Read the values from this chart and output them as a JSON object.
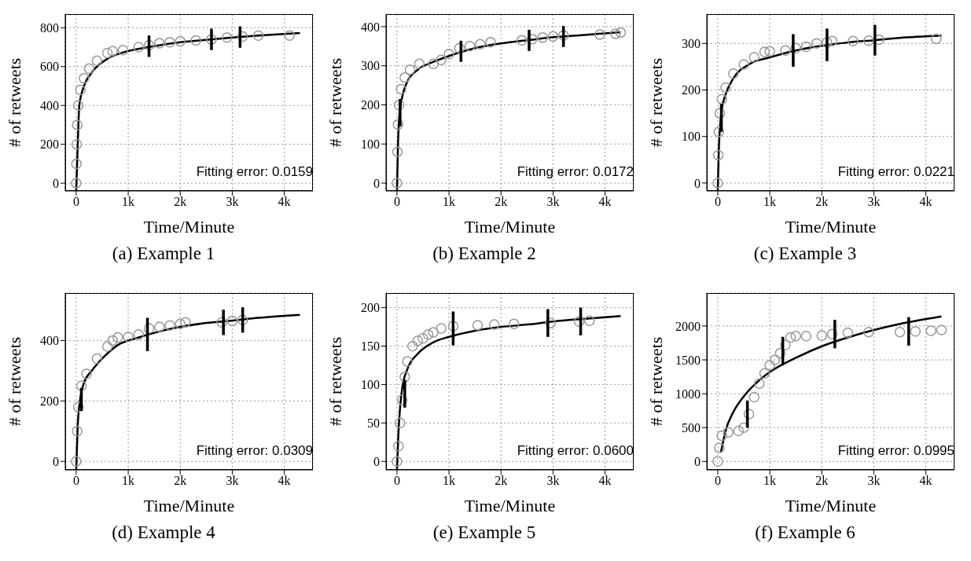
{
  "chart_data": [
    {
      "type": "scatter",
      "title": "(a) Example 1",
      "xlabel": "Time/Minute",
      "ylabel": "# of retweets",
      "annotations": [
        "Fitting error: 0.0159"
      ],
      "xlim": [
        -210,
        4550
      ],
      "ylim": [
        -40,
        870
      ],
      "xticks": [
        {
          "value": 0,
          "label": "0"
        },
        {
          "value": 1000,
          "label": "1k"
        },
        {
          "value": 2000,
          "label": "2k"
        },
        {
          "value": 3000,
          "label": "3k"
        },
        {
          "value": 4000,
          "label": "4k"
        }
      ],
      "yticks": [
        0,
        200,
        400,
        600,
        800
      ],
      "grid": true,
      "series": [
        {
          "type": "scatter",
          "marker": "circle",
          "color": "#999999",
          "x": [
            0,
            5,
            10,
            20,
            40,
            80,
            150,
            250,
            400,
            600,
            700,
            900,
            1200,
            1400,
            1600,
            1800,
            2000,
            2300,
            2600,
            2900,
            3200,
            3500,
            4100
          ],
          "values": [
            0,
            100,
            200,
            300,
            400,
            480,
            540,
            590,
            630,
            670,
            680,
            685,
            700,
            710,
            720,
            725,
            730,
            735,
            740,
            750,
            755,
            760,
            760
          ]
        },
        {
          "type": "line",
          "color": "#000000",
          "x": [
            0,
            30,
            60,
            150,
            300,
            600,
            1000,
            1500,
            2000,
            2500,
            3000,
            3500,
            4300
          ],
          "values": [
            -40,
            200,
            400,
            500,
            570,
            640,
            680,
            705,
            725,
            738,
            750,
            760,
            773
          ]
        },
        {
          "type": "bar",
          "color": "#000000",
          "x": [
            1400,
            2600,
            3150
          ],
          "base": [
            650,
            685,
            697
          ],
          "values": [
            110,
            110,
            110
          ]
        }
      ]
    },
    {
      "type": "scatter",
      "title": "(b) Example 2",
      "xlabel": "Time/Minute",
      "ylabel": "# of retweets",
      "annotations": [
        "Fitting error: 0.0172"
      ],
      "xlim": [
        -210,
        4550
      ],
      "ylim": [
        -20,
        432
      ],
      "xticks": [
        {
          "value": 0,
          "label": "0"
        },
        {
          "value": 1000,
          "label": "1k"
        },
        {
          "value": 2000,
          "label": "2k"
        },
        {
          "value": 3000,
          "label": "3k"
        },
        {
          "value": 4000,
          "label": "4k"
        }
      ],
      "yticks": [
        0,
        100,
        200,
        300,
        400
      ],
      "grid": true,
      "series": [
        {
          "type": "scatter",
          "marker": "circle",
          "color": "#999999",
          "x": [
            0,
            10,
            20,
            40,
            80,
            150,
            250,
            430,
            700,
            850,
            1000,
            1200,
            1400,
            1600,
            1800,
            2400,
            2600,
            2800,
            3000,
            3200,
            3900,
            4200,
            4300
          ],
          "values": [
            0,
            80,
            150,
            200,
            240,
            270,
            290,
            305,
            305,
            315,
            330,
            345,
            350,
            355,
            360,
            365,
            368,
            372,
            375,
            378,
            380,
            382,
            385
          ]
        },
        {
          "type": "line",
          "color": "#000000",
          "x": [
            0,
            20,
            50,
            100,
            200,
            400,
            700,
            1000,
            1500,
            2000,
            2500,
            3000,
            3500,
            4300
          ],
          "values": [
            -20,
            100,
            180,
            220,
            260,
            290,
            310,
            325,
            345,
            357,
            365,
            373,
            378,
            386
          ]
        },
        {
          "type": "bar",
          "color": "#000000",
          "x": [
            60,
            1230,
            2540,
            3200
          ],
          "base": [
            145,
            310,
            338,
            348
          ],
          "values": [
            70,
            54,
            54,
            54
          ]
        }
      ]
    },
    {
      "type": "scatter",
      "title": "(c) Example 3",
      "xlabel": "Time/Minute",
      "ylabel": "# of retweets",
      "annotations": [
        "Fitting error: 0.0221"
      ],
      "xlim": [
        -210,
        4550
      ],
      "ylim": [
        -17,
        363
      ],
      "xticks": [
        {
          "value": 0,
          "label": "0"
        },
        {
          "value": 1000,
          "label": "1k"
        },
        {
          "value": 2000,
          "label": "2k"
        },
        {
          "value": 3000,
          "label": "3k"
        },
        {
          "value": 4000,
          "label": "4k"
        }
      ],
      "yticks": [
        0,
        100,
        200,
        300
      ],
      "grid": true,
      "series": [
        {
          "type": "scatter",
          "marker": "circle",
          "color": "#999999",
          "x": [
            0,
            10,
            20,
            40,
            80,
            150,
            300,
            500,
            700,
            900,
            1000,
            1300,
            1500,
            1700,
            1900,
            2100,
            2200,
            2600,
            2900,
            3100,
            4200
          ],
          "values": [
            0,
            60,
            110,
            150,
            180,
            205,
            235,
            255,
            270,
            282,
            283,
            285,
            290,
            293,
            300,
            302,
            305,
            305,
            306,
            308,
            310
          ]
        },
        {
          "type": "line",
          "color": "#000000",
          "x": [
            0,
            20,
            50,
            80,
            150,
            300,
            600,
            1000,
            1500,
            2000,
            2500,
            3000,
            3500,
            4300
          ],
          "values": [
            -17,
            70,
            130,
            160,
            190,
            225,
            255,
            270,
            285,
            295,
            302,
            307,
            312,
            317
          ]
        },
        {
          "type": "bar",
          "color": "#000000",
          "x": [
            70,
            1450,
            2100,
            3020
          ],
          "base": [
            110,
            250,
            262,
            274
          ],
          "values": [
            60,
            70,
            70,
            66
          ]
        }
      ]
    },
    {
      "type": "scatter",
      "title": "(d) Example 4",
      "xlabel": "Time/Minute",
      "ylabel": "# of retweets",
      "annotations": [
        "Fitting error: 0.0309"
      ],
      "xlim": [
        -210,
        4550
      ],
      "ylim": [
        -28,
        557
      ],
      "xticks": [
        {
          "value": 0,
          "label": "0"
        },
        {
          "value": 1000,
          "label": "1k"
        },
        {
          "value": 2000,
          "label": "2k"
        },
        {
          "value": 3000,
          "label": "3k"
        },
        {
          "value": 4000,
          "label": "4k"
        }
      ],
      "yticks": [
        0,
        200,
        400
      ],
      "grid": true,
      "series": [
        {
          "type": "scatter",
          "marker": "circle",
          "color": "#999999",
          "x": [
            0,
            20,
            40,
            100,
            200,
            400,
            600,
            700,
            800,
            1000,
            1200,
            1400,
            1600,
            1800,
            2000,
            2100,
            2800,
            3000,
            3200
          ],
          "values": [
            0,
            100,
            180,
            250,
            290,
            340,
            380,
            400,
            410,
            412,
            420,
            440,
            445,
            450,
            455,
            460,
            460,
            465,
            468
          ]
        },
        {
          "type": "line",
          "color": "#000000",
          "x": [
            0,
            30,
            80,
            150,
            300,
            500,
            800,
            1200,
            1600,
            2000,
            2500,
            3000,
            3500,
            4300
          ],
          "values": [
            -28,
            120,
            210,
            260,
            300,
            340,
            385,
            410,
            430,
            445,
            458,
            466,
            475,
            485
          ]
        },
        {
          "type": "bar",
          "color": "#000000",
          "x": [
            100,
            1370,
            2830,
            3200
          ],
          "base": [
            167,
            365,
            418,
            426
          ],
          "values": [
            76,
            110,
            84,
            84
          ]
        }
      ]
    },
    {
      "type": "scatter",
      "title": "(e) Example 5",
      "xlabel": "Time/Minute",
      "ylabel": "# of retweets",
      "annotations": [
        "Fitting error: 0.0600"
      ],
      "xlim": [
        -210,
        4550
      ],
      "ylim": [
        -11,
        219
      ],
      "xticks": [
        {
          "value": 0,
          "label": "0"
        },
        {
          "value": 1000,
          "label": "1k"
        },
        {
          "value": 2000,
          "label": "2k"
        },
        {
          "value": 3000,
          "label": "3k"
        },
        {
          "value": 4000,
          "label": "4k"
        }
      ],
      "yticks": [
        0,
        50,
        100,
        150,
        200
      ],
      "grid": true,
      "series": [
        {
          "type": "scatter",
          "marker": "circle",
          "color": "#999999",
          "x": [
            0,
            30,
            60,
            100,
            150,
            200,
            300,
            400,
            500,
            600,
            700,
            850,
            1080,
            1550,
            1870,
            2250,
            2950,
            3500,
            3700
          ],
          "values": [
            0,
            20,
            50,
            80,
            110,
            130,
            150,
            157,
            160,
            165,
            168,
            173,
            176,
            177,
            178,
            179,
            180,
            182,
            183
          ]
        },
        {
          "type": "line",
          "color": "#000000",
          "x": [
            0,
            30,
            60,
            100,
            200,
            400,
            700,
            1000,
            1500,
            2000,
            2500,
            3000,
            3500,
            4300
          ],
          "values": [
            -11,
            40,
            70,
            95,
            120,
            140,
            155,
            162,
            170,
            175,
            178,
            182,
            185,
            189
          ]
        },
        {
          "type": "bar",
          "color": "#000000",
          "x": [
            150,
            1080,
            2900,
            3530
          ],
          "base": [
            70,
            151,
            162,
            164
          ],
          "values": [
            36,
            44,
            36,
            36
          ]
        }
      ]
    },
    {
      "type": "scatter",
      "title": "(f) Example 6",
      "xlabel": "Time/Minute",
      "ylabel": "# of retweets",
      "annotations": [
        "Fitting error: 0.0995"
      ],
      "xlim": [
        -210,
        4550
      ],
      "ylim": [
        -124,
        2486
      ],
      "xticks": [
        {
          "value": 0,
          "label": "0"
        },
        {
          "value": 1000,
          "label": "1k"
        },
        {
          "value": 2000,
          "label": "2k"
        },
        {
          "value": 3000,
          "label": "3k"
        },
        {
          "value": 4000,
          "label": "4k"
        }
      ],
      "yticks": [
        0,
        500,
        1000,
        1500,
        2000
      ],
      "grid": true,
      "series": [
        {
          "type": "scatter",
          "marker": "circle",
          "color": "#999999",
          "x": [
            0,
            30,
            80,
            200,
            400,
            500,
            600,
            700,
            800,
            900,
            1000,
            1100,
            1200,
            1300,
            1400,
            1500,
            1700,
            2000,
            2200,
            2500,
            2900,
            3500,
            3800,
            4100,
            4300
          ],
          "values": [
            0,
            200,
            380,
            430,
            450,
            500,
            700,
            950,
            1150,
            1300,
            1420,
            1500,
            1600,
            1720,
            1830,
            1850,
            1850,
            1860,
            1880,
            1900,
            1910,
            1910,
            1920,
            1930,
            1940
          ]
        },
        {
          "type": "line",
          "color": "#000000",
          "x": [
            60,
            150,
            300,
            500,
            800,
            1000,
            1500,
            2000,
            2500,
            3000,
            3500,
            4300
          ],
          "values": [
            130,
            450,
            730,
            960,
            1200,
            1320,
            1530,
            1700,
            1830,
            1940,
            2030,
            2140
          ]
        },
        {
          "type": "bar",
          "color": "#000000",
          "x": [
            570,
            1250,
            2250,
            3670
          ],
          "base": [
            500,
            1420,
            1670,
            1710
          ],
          "values": [
            400,
            420,
            420,
            420
          ]
        }
      ]
    }
  ]
}
